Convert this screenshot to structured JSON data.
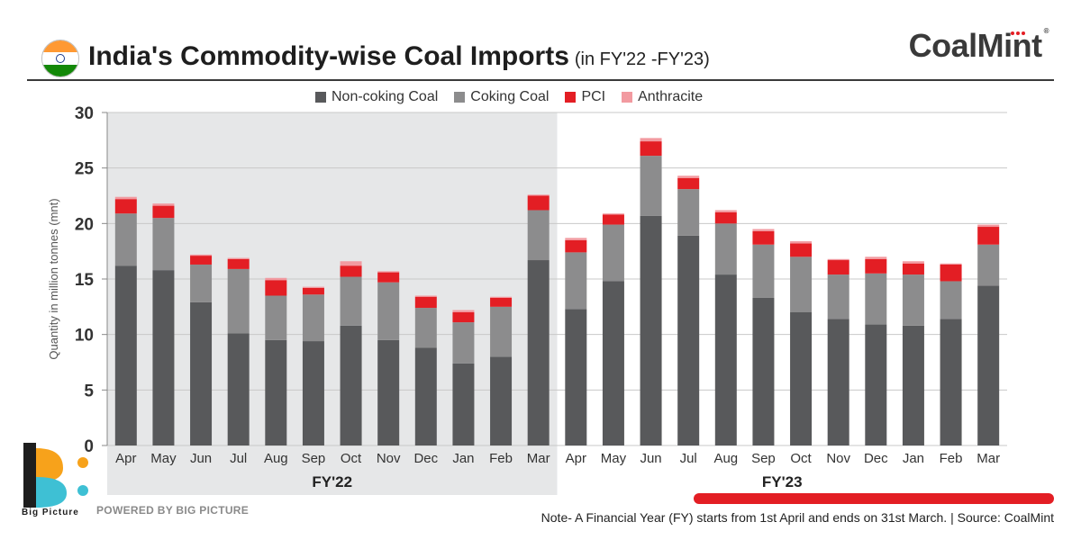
{
  "header": {
    "title": "India's Commodity-wise Coal Imports",
    "subtitle": "(in FY'22 -FY'23)",
    "brand": "CoalMint",
    "brand_reg": "®"
  },
  "colors": {
    "non_coking": "#58595b",
    "coking": "#8c8c8d",
    "pci": "#e31e24",
    "anthracite": "#f29aa0",
    "fy22_bg": "#e6e7e8",
    "grid": "#c8c8c8"
  },
  "chart_data": {
    "type": "bar",
    "stacked": true,
    "ylabel": "Quantity in million tonnes (mnt)",
    "ylim": [
      0,
      30
    ],
    "yticks": [
      "0",
      "5",
      "10",
      "15",
      "20",
      "25",
      "30"
    ],
    "categories": [
      "Apr",
      "May",
      "Jun",
      "Jul",
      "Aug",
      "Sep",
      "Oct",
      "Nov",
      "Dec",
      "Jan",
      "Feb",
      "Mar",
      "Apr",
      "May",
      "Jun",
      "Jul",
      "Aug",
      "Sep",
      "Oct",
      "Nov",
      "Dec",
      "Jan",
      "Feb",
      "Mar"
    ],
    "groups": [
      {
        "label": "FY'22",
        "from": 0,
        "to": 11,
        "shaded": true
      },
      {
        "label": "FY'23",
        "from": 12,
        "to": 23,
        "shaded": false
      }
    ],
    "legend_position": "top-center",
    "series": [
      {
        "name": "Non-coking Coal",
        "values": [
          16.2,
          15.8,
          12.9,
          10.1,
          9.5,
          9.4,
          10.8,
          9.5,
          8.8,
          7.4,
          8.0,
          16.7,
          12.3,
          14.8,
          20.7,
          18.9,
          15.4,
          13.3,
          12.0,
          11.4,
          10.9,
          10.8,
          11.4,
          14.4
        ]
      },
      {
        "name": "Coking Coal",
        "values": [
          4.7,
          4.7,
          3.4,
          5.8,
          4.0,
          4.2,
          4.4,
          5.2,
          3.6,
          3.7,
          4.5,
          4.5,
          5.1,
          5.1,
          5.4,
          4.2,
          4.6,
          4.8,
          5.0,
          4.0,
          4.6,
          4.6,
          3.4,
          3.7
        ]
      },
      {
        "name": "PCI",
        "values": [
          1.3,
          1.1,
          0.8,
          0.9,
          1.4,
          0.6,
          1.0,
          0.9,
          1.0,
          0.9,
          0.8,
          1.3,
          1.1,
          0.9,
          1.3,
          1.0,
          1.0,
          1.2,
          1.2,
          1.3,
          1.3,
          1.0,
          1.5,
          1.6
        ]
      },
      {
        "name": "Anthracite",
        "values": [
          0.2,
          0.2,
          0.1,
          0.1,
          0.2,
          0.1,
          0.4,
          0.1,
          0.1,
          0.2,
          0.1,
          0.1,
          0.2,
          0.1,
          0.3,
          0.2,
          0.2,
          0.2,
          0.2,
          0.1,
          0.2,
          0.2,
          0.1,
          0.2
        ]
      }
    ]
  },
  "footer": {
    "logo_text": "Big Picture",
    "powered_by": "POWERED BY BIG PICTURE",
    "note": "Note- A Financial Year (FY) starts from 1st April and ends on 31st March.  | Source: CoalMint"
  }
}
